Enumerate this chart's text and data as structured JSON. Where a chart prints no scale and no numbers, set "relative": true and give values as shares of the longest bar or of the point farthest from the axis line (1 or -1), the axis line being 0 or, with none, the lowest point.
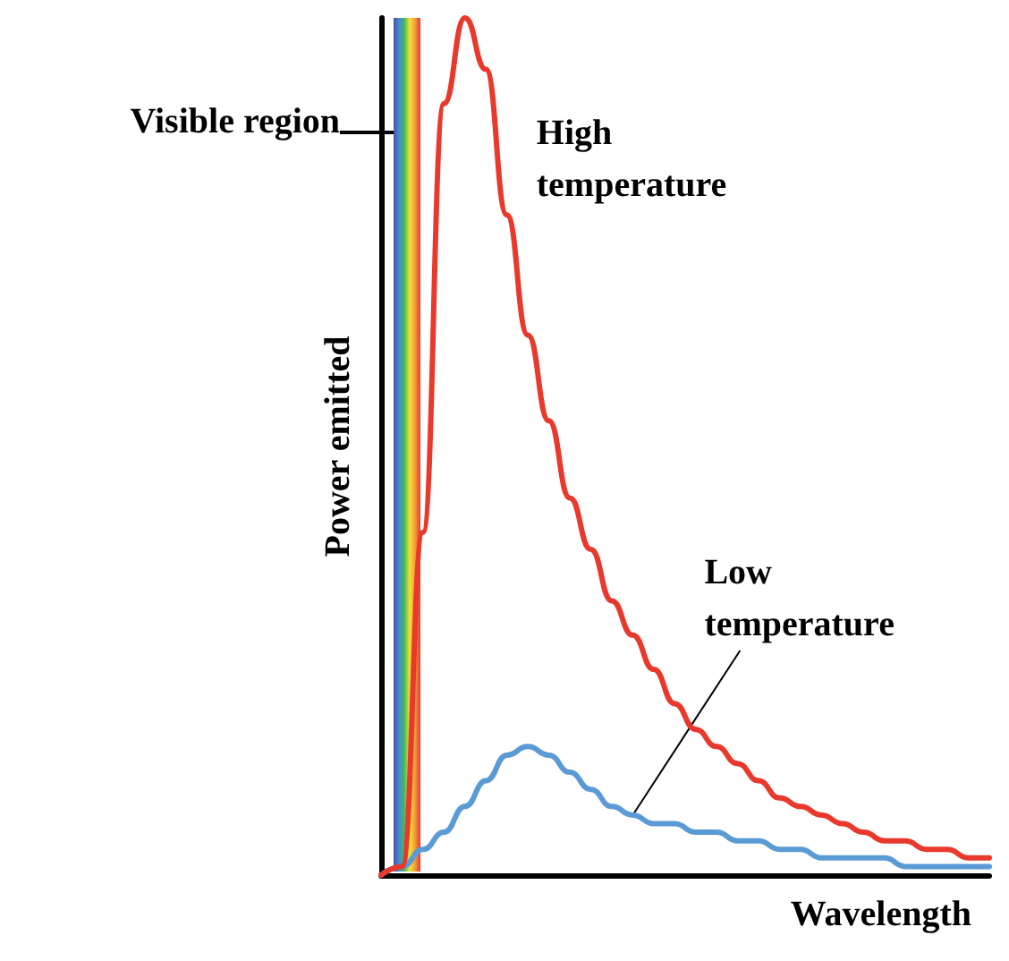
{
  "chart_data": {
    "type": "line",
    "relative": true,
    "xlabel": "Wavelength",
    "ylabel": "Power emitted",
    "annotations": [
      "Visible region"
    ],
    "categories": [
      null,
      null,
      null,
      null,
      null,
      null,
      null,
      null,
      null,
      null,
      null,
      null,
      null,
      null,
      null,
      null,
      null,
      null,
      null,
      null,
      null,
      null,
      null,
      null,
      null,
      null,
      null,
      null,
      null,
      null
    ],
    "series": [
      {
        "name": "High temperature",
        "color": "#e8392c",
        "values": [
          0,
          0.01,
          0.4,
          0.9,
          1,
          0.94,
          0.77,
          0.63,
          0.53,
          0.44,
          0.38,
          0.32,
          0.28,
          0.24,
          0.2,
          0.17,
          0.15,
          0.13,
          0.11,
          0.09,
          0.08,
          0.07,
          0.06,
          0.05,
          0.04,
          0.04,
          0.03,
          0.03,
          0.02,
          0.02
        ]
      },
      {
        "name": "Low temperature",
        "color": "#5b9bd5",
        "values": [
          0,
          0.01,
          0.03,
          0.05,
          0.08,
          0.11,
          0.14,
          0.15,
          0.14,
          0.12,
          0.1,
          0.08,
          0.07,
          0.06,
          0.06,
          0.05,
          0.05,
          0.04,
          0.04,
          0.03,
          0.03,
          0.02,
          0.02,
          0.02,
          0.02,
          0.01,
          0.01,
          0.01,
          0.01,
          0.01
        ]
      }
    ],
    "legend": false,
    "grid": false,
    "marker": "none",
    "line_style": "solid"
  }
}
